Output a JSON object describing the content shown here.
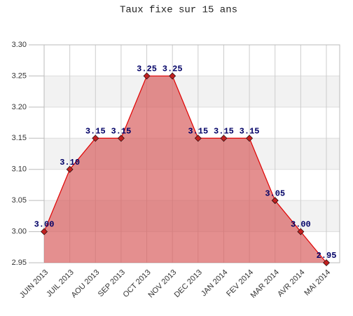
{
  "chart_data": {
    "type": "area",
    "title": "Taux fixe sur 15 ans",
    "categories": [
      "JUIN 2013",
      "JUIL 2013",
      "AOU 2013",
      "SEP 2013",
      "OCT 2013",
      "NOV 2013",
      "DEC 2013",
      "JAN 2014",
      "FEV 2014",
      "MAR 2014",
      "AVR 2014",
      "MAI 2014"
    ],
    "values": [
      3.0,
      3.1,
      3.15,
      3.15,
      3.25,
      3.25,
      3.15,
      3.15,
      3.15,
      3.05,
      3.0,
      2.95
    ],
    "value_labels": [
      "3.00",
      "3.10",
      "3.15",
      "3.15",
      "3.25",
      "3.25",
      "3.15",
      "3.15",
      "3.15",
      "3.05",
      "3.00",
      "2.95"
    ],
    "color": "#e00000",
    "fill_color": "#d95f5f",
    "marker_color": "#c02020",
    "ylim": [
      2.95,
      3.3
    ],
    "yticks": [
      2.95,
      {
        "value": 3.0,
        "label": "3.00"
      },
      3.05,
      {
        "value": 3.1,
        "label": "3.10"
      },
      3.15,
      {
        "value": 3.2,
        "label": "3.20"
      },
      3.25,
      {
        "value": 3.3,
        "label": "3.30"
      }
    ],
    "grid": true,
    "bands": true
  }
}
